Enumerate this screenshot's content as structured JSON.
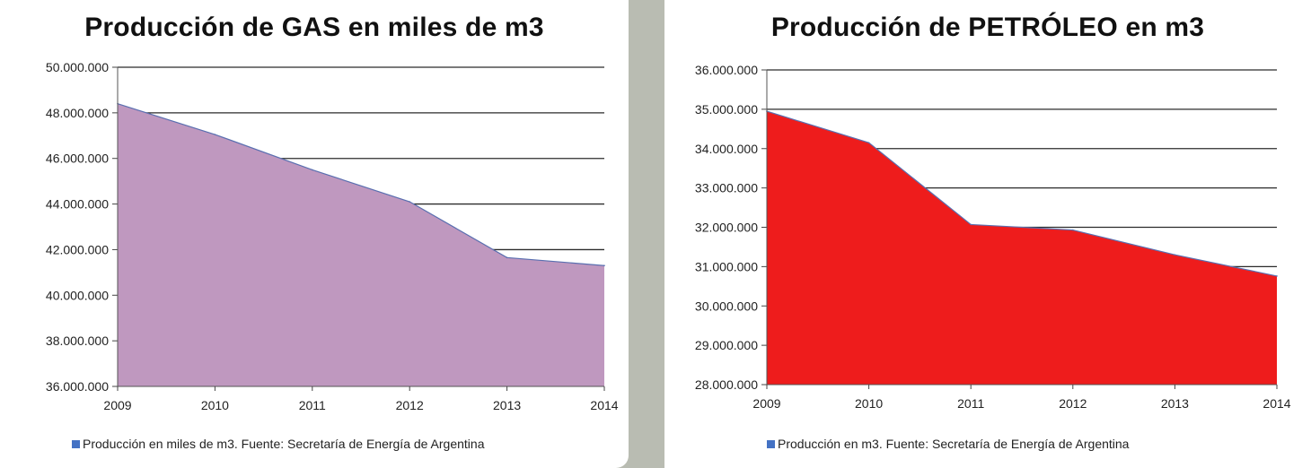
{
  "chart_data": [
    {
      "type": "area",
      "title": "Producción de GAS en miles de m3",
      "x": [
        2009,
        2010,
        2011,
        2012,
        2013,
        2014
      ],
      "series": [
        {
          "name": "Producción en miles de m3. Fuente: Secretaría de Energía de Argentina",
          "values": [
            48400000,
            47050000,
            45500000,
            44100000,
            41650000,
            41300000
          ]
        }
      ],
      "ylim": [
        36000000,
        50000000
      ],
      "yticks": [
        "36.000.000",
        "38.000.000",
        "40.000.000",
        "42.000.000",
        "44.000.000",
        "46.000.000",
        "48.000.000",
        "50.000.000"
      ],
      "xticks": [
        "2009",
        "2010",
        "2011",
        "2012",
        "2013",
        "2014"
      ],
      "fill_color": "#bf98bf",
      "line_color": "#5a6fb0",
      "grid": true,
      "legend_position": "bottom"
    },
    {
      "type": "area",
      "title": "Producción de PETRÓLEO  en m3",
      "x": [
        2009,
        2010,
        2011,
        2012,
        2013,
        2014
      ],
      "series": [
        {
          "name": "Producción en m3. Fuente: Secretaría de Energía de Argentina",
          "values": [
            34950000,
            34150000,
            32070000,
            31930000,
            31300000,
            30760000
          ]
        }
      ],
      "ylim": [
        28000000,
        36000000
      ],
      "yticks": [
        "28.000.000",
        "29.000.000",
        "30.000.000",
        "31.000.000",
        "32.000.000",
        "33.000.000",
        "34.000.000",
        "35.000.000",
        "36.000.000"
      ],
      "xticks": [
        "2009",
        "2010",
        "2011",
        "2012",
        "2013",
        "2014"
      ],
      "fill_color": "#ee1c1c",
      "line_color": "#5a6fb0",
      "grid": true,
      "legend_position": "bottom"
    }
  ]
}
